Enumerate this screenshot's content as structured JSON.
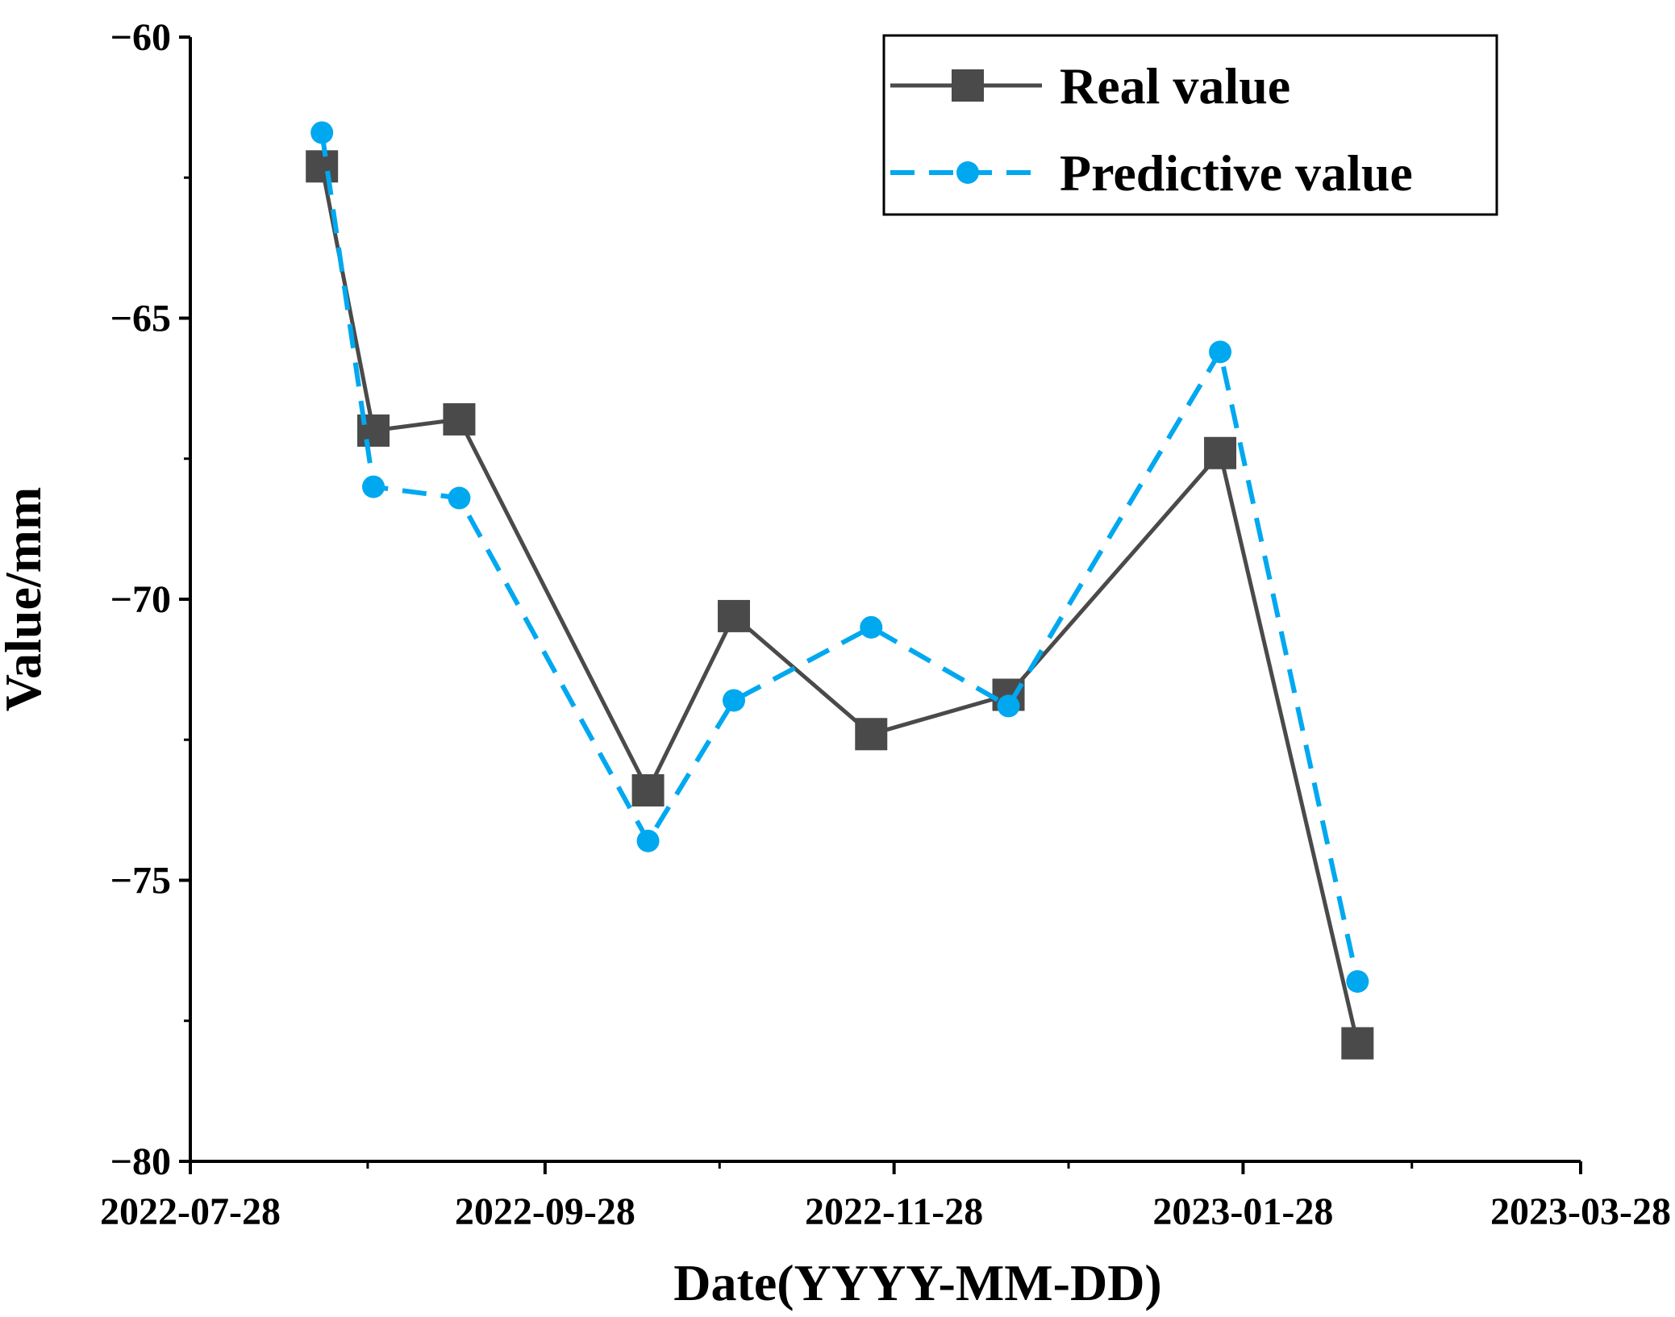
{
  "chart_data": {
    "type": "line",
    "title": "",
    "xlabel": "Date(YYYY-MM-DD)",
    "ylabel": "Value/mm",
    "x_axis": {
      "type": "date",
      "range": [
        "2022-07-28",
        "2023-03-28"
      ],
      "ticks": [
        "2022-07-28",
        "2022-09-28",
        "2022-11-28",
        "2023-01-28",
        "2023-03-28"
      ]
    },
    "y_axis": {
      "range": [
        -80,
        -60
      ],
      "ticks": [
        -60,
        -65,
        -70,
        -75,
        -80
      ],
      "tick_labels": [
        "−60",
        "−65",
        "−70",
        "−75",
        "−80"
      ]
    },
    "legend": {
      "position": "top-right",
      "entries": [
        "Real value",
        "Predictive value"
      ]
    },
    "series": [
      {
        "name": "Real value",
        "color": "#4a4a4a",
        "style": "solid",
        "marker": "square",
        "points": [
          {
            "x": "2022-08-20",
            "y": -62.3
          },
          {
            "x": "2022-08-29",
            "y": -67.0
          },
          {
            "x": "2022-09-13",
            "y": -66.8
          },
          {
            "x": "2022-10-16",
            "y": -73.4
          },
          {
            "x": "2022-10-31",
            "y": -70.3
          },
          {
            "x": "2022-11-24",
            "y": -72.4
          },
          {
            "x": "2022-12-18",
            "y": -71.7
          },
          {
            "x": "2023-01-24",
            "y": -67.4
          },
          {
            "x": "2023-02-17",
            "y": -77.9
          }
        ]
      },
      {
        "name": "Predictive value",
        "color": "#00a8f0",
        "style": "dashed",
        "marker": "circle",
        "points": [
          {
            "x": "2022-08-20",
            "y": -61.7
          },
          {
            "x": "2022-08-29",
            "y": -68.0
          },
          {
            "x": "2022-09-13",
            "y": -68.2
          },
          {
            "x": "2022-10-16",
            "y": -74.3
          },
          {
            "x": "2022-10-31",
            "y": -71.8
          },
          {
            "x": "2022-11-24",
            "y": -70.5
          },
          {
            "x": "2022-12-18",
            "y": -71.9
          },
          {
            "x": "2023-01-24",
            "y": -65.6
          },
          {
            "x": "2023-02-17",
            "y": -76.8
          }
        ]
      }
    ]
  }
}
